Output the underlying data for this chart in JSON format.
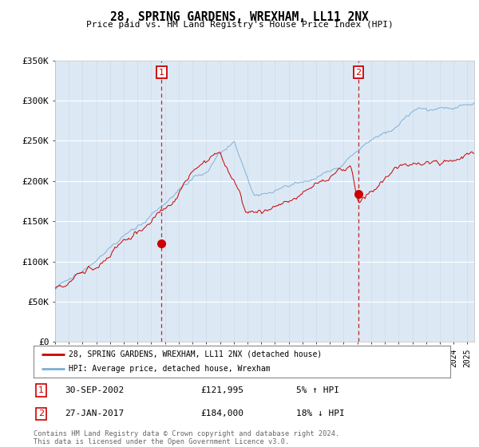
{
  "title": "28, SPRING GARDENS, WREXHAM, LL11 2NX",
  "subtitle": "Price paid vs. HM Land Registry's House Price Index (HPI)",
  "ylim": [
    0,
    350000
  ],
  "xlim_start": 1995.0,
  "xlim_end": 2025.5,
  "bg_color": "#dce9f5",
  "fig_color": "#ffffff",
  "red_color": "#cc0000",
  "blue_color": "#7bafd4",
  "marker1_date": 2002.75,
  "marker2_date": 2017.08,
  "marker1_price": 121995,
  "marker2_price": 184000,
  "legend_line1": "28, SPRING GARDENS, WREXHAM, LL11 2NX (detached house)",
  "legend_line2": "HPI: Average price, detached house, Wrexham",
  "footnote": "Contains HM Land Registry data © Crown copyright and database right 2024.\nThis data is licensed under the Open Government Licence v3.0."
}
